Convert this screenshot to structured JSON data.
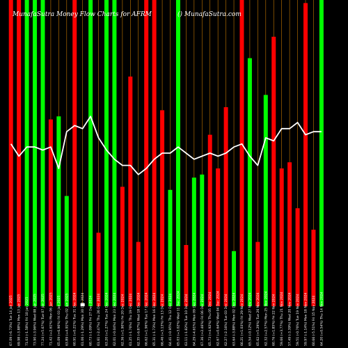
{
  "chart_data": {
    "type": "bar",
    "title": "MunafaSutra  Money Flow  Charts for AFRM",
    "watermark": "() MunafaSutra.com",
    "categories": [
      "Tue 14 Jan 2025",
      "Mon 13 Jan 2025",
      "Fri 10 Jan 2025",
      "Wed 08 Jan 2025",
      "Tue 07 Jan 2025",
      "Mon 06 Jan 2025",
      "Fri 03 Jan 2025",
      "Thu 02 Jan 2025",
      "Tue 31 Dec 2024",
      "Mon 30 Dec 2024",
      "Fri 27 Dec 2024",
      "Thu 26 Dec 2024",
      "Tue 24 Dec 2024",
      "Mon 23 Dec 2024",
      "Fri 20 Dec 2024",
      "Thu 19 Dec 2024",
      "Wed 18 Dec 2024",
      "Tue 17 Dec 2024",
      "Mon 16 Dec 2024",
      "Fri 13 Dec 2024",
      "Thu 12 Dec 2024",
      "Wed 11 Dec 2024",
      "Tue 10 Dec 2024",
      "Mon 09 Dec 2024",
      "Fri 06 Dec 2024",
      "Thu 05 Dec 2024",
      "Wed 04 Dec 2024",
      "Tue 03 Dec 2024",
      "Mon 02 Dec 2024",
      "Fri 29 Nov 2024",
      "Wed 27 Nov 2024",
      "Tue 26 Nov 2024",
      "Mon 25 Nov 2024",
      "Fri 22 Nov 2024",
      "Thu 21 Nov 2024",
      "Wed 20 Nov 2024",
      "Tue 19 Nov 2024",
      "Mon 18 Nov 2024",
      "Fri 15 Nov 2024",
      "Thu 14 Nov 2024"
    ],
    "xtick_labels": [
      "67.09 (-6.73%) Tue 14 Jan 2025",
      "69.98 (-3.88%) Mon 13 Jan 2025",
      "71.03 (-1.58%) Fri 10 Jan 2025",
      "73.90 (-3.96%) Wed 08 Jan 2025",
      "77.24 (+5.67%) Tue 07 Jan 2025",
      "71.42 (+2.61%) Mon 06 Jan 2025",
      "65.09 (+6.90%) Fri 03 Jan 2025",
      "63.89 (+4.91%) Thu 02 Jan 2025",
      "60.91 (+0.21%) Tue 31 Dec 2024",
      "61.06 (-1.29%) Mon 30 Dec 2024",
      "60.73 (-1.09%) Fri 27 Dec 2024",
      "61.61 (-2.47%) Thu 26 Dec 2024",
      "63.20 (+1.27%) Tue 24 Dec 2024",
      "62.01 (-0.04%) Mon 23 Dec 2024",
      "62.36 (+1.90%) Fri 20 Dec 2024",
      "61.25 (-1.76%) Thu 19 Dec 2024",
      "62.35 (-6.87%) Wed 18 Dec 2024",
      "66.62 (+1.96%) Tue 17 Dec 2024",
      "65.31 (-1.73%) Mon 16 Dec 2024",
      "66.46 (+3.13%) Fri 13 Dec 2024",
      "64.41 (-0.95%) Thu 12 Dec 2024",
      "65.03 (+3.02%) Wed 11 Dec 2024",
      "63.11 (-1.82%) Tue 10 Dec 2024",
      "64.29 (-4.61%) Mon 09 Dec 2024",
      "67.36 (+2.46%) Fri 06 Dec 2024",
      "65.73 (+4.92%) Thu 05 Dec 2024",
      "62.67 (+0.64%) Wed 04 Dec 2024",
      "62.27 (-2.16%) Tue 03 Dec 2024",
      "63.64 (-3.88%) Mon 02 Dec 2024",
      "66.21 (+1.03%) Fri 29 Nov 2024",
      "65.54 (-0.12%) Wed 27 Nov 2024",
      "65.62 (+5.29%) Tue 26 Nov 2024",
      "62.32 (+2.57%) Mon 25 Nov 2024",
      "60.76 (+1.85%) Fri 22 Nov 2024",
      "59.66 (+3.77%) Thu 21 Nov 2024",
      "57.49 (-3.39%) Wed 20 Nov 2024",
      "59.51 (-0.76%) Tue 19 Nov 2024",
      "59.97 (-1.14%) Mon 18 Nov 2024",
      "60.66 (-5.51%) Fri 15 Nov 2024",
      "64.20 (+0.54%) Thu 14 Nov 2024"
    ],
    "series": [
      {
        "role": "bars",
        "values": [
          100,
          100,
          100,
          100,
          100,
          61,
          62,
          36,
          100,
          1,
          100,
          24,
          100,
          100,
          39,
          75,
          21,
          100,
          100,
          64,
          38,
          100,
          20,
          42,
          43,
          56,
          45,
          65,
          18,
          100,
          81,
          21,
          69,
          88,
          45,
          47,
          32,
          99,
          25,
          100
        ],
        "colors": [
          "red",
          "red",
          "green",
          "green",
          "green",
          "red",
          "green",
          "green",
          "red",
          "white",
          "green",
          "red",
          "green",
          "green",
          "red",
          "red",
          "red",
          "red",
          "red",
          "red",
          "green",
          "green",
          "red",
          "green",
          "green",
          "red",
          "red",
          "red",
          "green",
          "red",
          "green",
          "red",
          "green",
          "red",
          "red",
          "red",
          "red",
          "red",
          "red",
          "green"
        ]
      },
      {
        "role": "line",
        "values": [
          53,
          49,
          52,
          52,
          51,
          52,
          45,
          57,
          59,
          58,
          62,
          55,
          51,
          48,
          46,
          46,
          43,
          45,
          48,
          50,
          50,
          52,
          50,
          48,
          49,
          50,
          49,
          50,
          52,
          53,
          49,
          46,
          55,
          54,
          58,
          58,
          60,
          56,
          57,
          57
        ]
      }
    ],
    "ylim": [
      0,
      100
    ],
    "grid": false,
    "colors": {
      "red": "#ff0000",
      "green": "#00ff00",
      "white": "#ffffff",
      "grid": "#c87a00",
      "line": "#ffffff",
      "background": "#000000"
    }
  }
}
